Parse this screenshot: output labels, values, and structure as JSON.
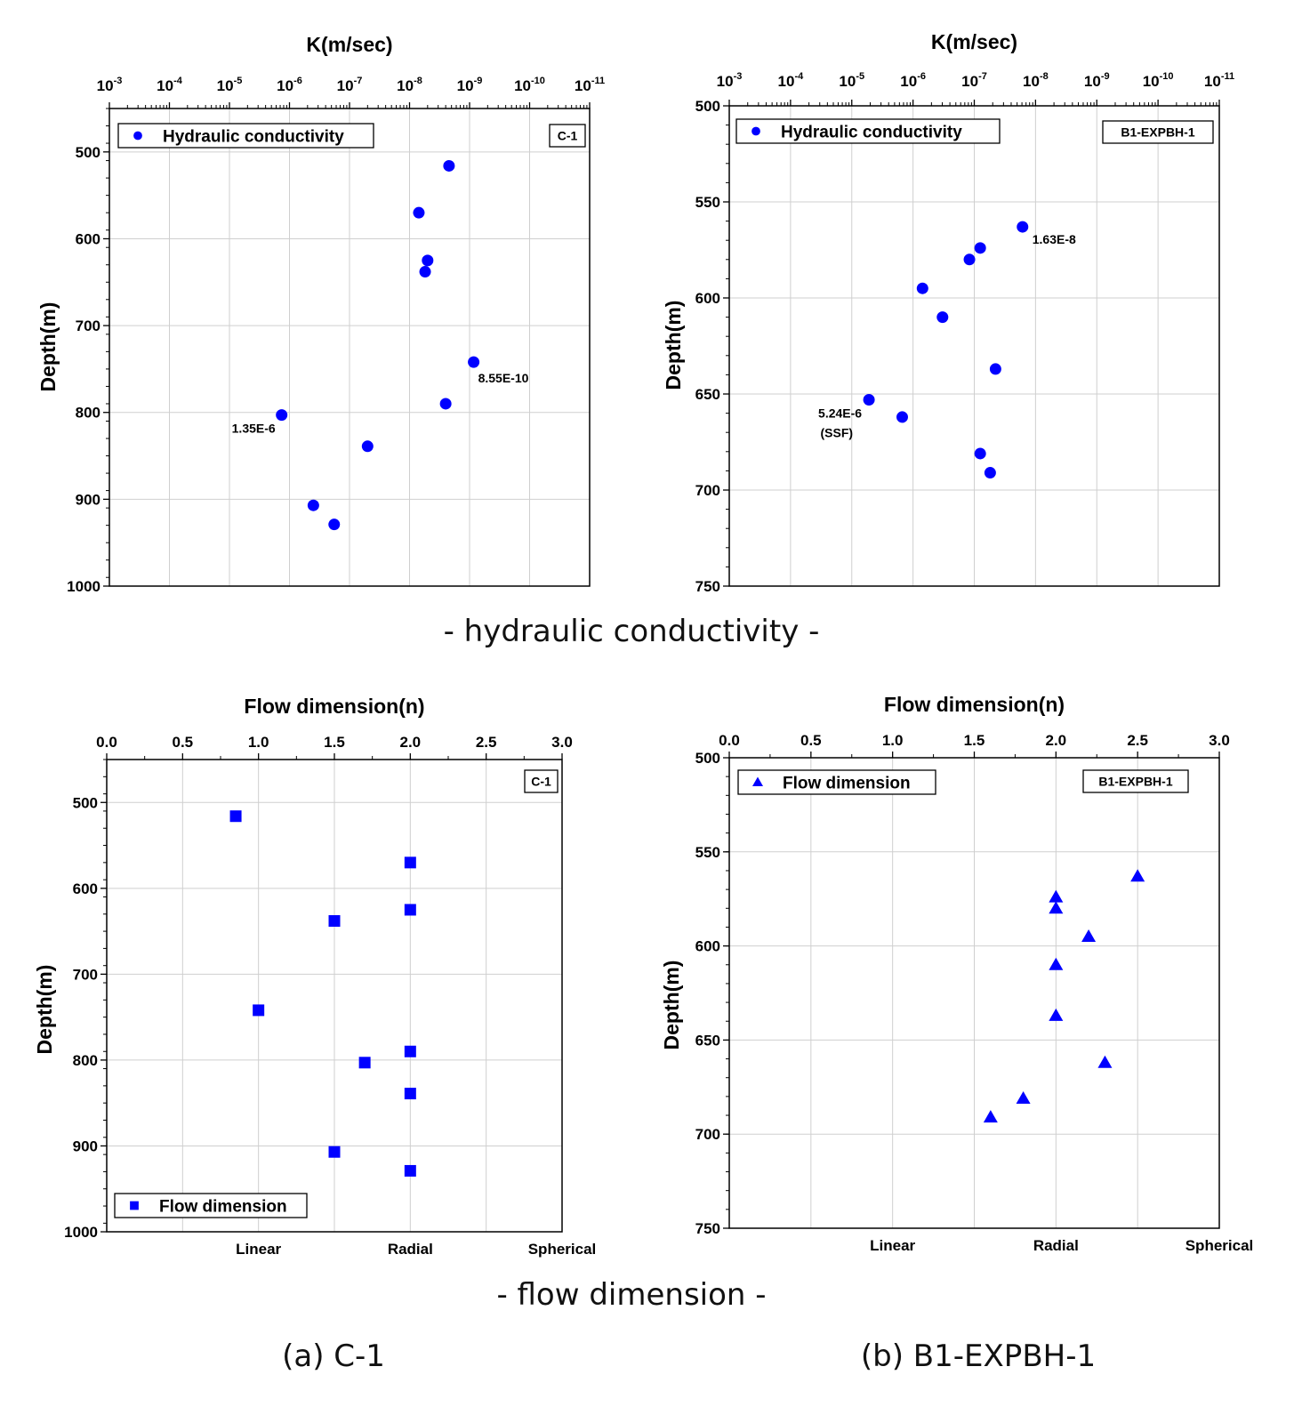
{
  "captions": {
    "hydraulic": "- hydraulic conductivity -",
    "flow": "- flow dimension -",
    "a": "(a) C-1",
    "b": "(b) B1-EXPBH-1"
  },
  "chart_data": [
    {
      "type": "scatter",
      "title": "K(m/sec)",
      "xlabel": "K(m/sec)",
      "ylabel": "Depth(m)",
      "x_scale": "log",
      "x_reversed": true,
      "xlim": [
        0.001,
        1e-11
      ],
      "x_ticks": [
        0.001,
        0.0001,
        1e-05,
        1e-06,
        1e-07,
        1e-08,
        1e-09,
        1e-10,
        1e-11
      ],
      "x_tick_labels": [
        {
          "base": "10",
          "exp": "-3"
        },
        {
          "base": "10",
          "exp": "-4"
        },
        {
          "base": "10",
          "exp": "-5"
        },
        {
          "base": "10",
          "exp": "-6"
        },
        {
          "base": "10",
          "exp": "-7"
        },
        {
          "base": "10",
          "exp": "-8"
        },
        {
          "base": "10",
          "exp": "-9"
        },
        {
          "base": "10",
          "exp": "-10"
        },
        {
          "base": "10",
          "exp": "-11"
        }
      ],
      "ylim": [
        1000,
        450
      ],
      "y_ticks": [
        500,
        600,
        700,
        800,
        900,
        1000
      ],
      "y_reversed": true,
      "grid": true,
      "legend": {
        "label": "Hydraulic conductivity",
        "position": "top-left",
        "marker": "circle"
      },
      "tag": "C-1",
      "color": "#0000ff",
      "series": [
        {
          "name": "Hydraulic conductivity",
          "marker": "circle",
          "points": [
            {
              "x": 2.2e-09,
              "y": 516
            },
            {
              "x": 7e-09,
              "y": 570
            },
            {
              "x": 5e-09,
              "y": 625
            },
            {
              "x": 5.5e-09,
              "y": 638
            },
            {
              "x": 8.55e-10,
              "y": 742
            },
            {
              "x": 2.5e-09,
              "y": 790
            },
            {
              "x": 1.35e-06,
              "y": 803
            },
            {
              "x": 5e-08,
              "y": 839
            },
            {
              "x": 4e-07,
              "y": 907
            },
            {
              "x": 1.8e-07,
              "y": 929
            }
          ]
        }
      ],
      "annotations": [
        {
          "text": "8.55E-10",
          "x": 8.55e-10,
          "y": 742
        },
        {
          "text": "1.35E-6",
          "x": 1.35e-06,
          "y": 803
        }
      ]
    },
    {
      "type": "scatter",
      "title": "K(m/sec)",
      "xlabel": "K(m/sec)",
      "ylabel": "Depth(m)",
      "x_scale": "log",
      "x_reversed": true,
      "xlim": [
        0.001,
        1e-11
      ],
      "x_ticks": [
        0.001,
        0.0001,
        1e-05,
        1e-06,
        1e-07,
        1e-08,
        1e-09,
        1e-10,
        1e-11
      ],
      "x_tick_labels": [
        {
          "base": "10",
          "exp": "-3"
        },
        {
          "base": "10",
          "exp": "-4"
        },
        {
          "base": "10",
          "exp": "-5"
        },
        {
          "base": "10",
          "exp": "-6"
        },
        {
          "base": "10",
          "exp": "-7"
        },
        {
          "base": "10",
          "exp": "-8"
        },
        {
          "base": "10",
          "exp": "-9"
        },
        {
          "base": "10",
          "exp": "-10"
        },
        {
          "base": "10",
          "exp": "-11"
        }
      ],
      "ylim": [
        750,
        500
      ],
      "y_ticks": [
        500,
        550,
        600,
        650,
        700,
        750
      ],
      "y_reversed": true,
      "grid": true,
      "legend": {
        "label": "Hydraulic conductivity",
        "position": "top-left",
        "marker": "circle"
      },
      "tag": "B1-EXPBH-1",
      "color": "#0000ff",
      "series": [
        {
          "name": "Hydraulic conductivity",
          "marker": "circle",
          "points": [
            {
              "x": 1.63e-08,
              "y": 563
            },
            {
              "x": 8e-08,
              "y": 574
            },
            {
              "x": 1.2e-07,
              "y": 580
            },
            {
              "x": 7e-07,
              "y": 595
            },
            {
              "x": 3.3e-07,
              "y": 610
            },
            {
              "x": 4.5e-08,
              "y": 637
            },
            {
              "x": 5.24e-06,
              "y": 653
            },
            {
              "x": 1.5e-06,
              "y": 662
            },
            {
              "x": 8e-08,
              "y": 681
            },
            {
              "x": 5.5e-08,
              "y": 691
            }
          ]
        }
      ],
      "annotations": [
        {
          "text": "1.63E-8",
          "x": 1.63e-08,
          "y": 563
        },
        {
          "text": "5.24E-6",
          "x": 5.24e-06,
          "y": 653
        },
        {
          "text": "(SSF)",
          "x": 5.24e-06,
          "y": 653
        }
      ]
    },
    {
      "type": "scatter",
      "title": "Flow dimension(n)",
      "xlabel": "Flow dimension(n)",
      "ylabel": "Depth(m)",
      "xlim": [
        0.0,
        3.0
      ],
      "x_ticks": [
        0.0,
        0.5,
        1.0,
        1.5,
        2.0,
        2.5,
        3.0
      ],
      "x_tick_labels": [
        "0.0",
        "0.5",
        "1.0",
        "1.5",
        "2.0",
        "2.5",
        "3.0"
      ],
      "ylim": [
        1000,
        450
      ],
      "y_ticks": [
        500,
        600,
        700,
        800,
        900,
        1000
      ],
      "y_reversed": true,
      "grid": true,
      "bottom_labels": [
        {
          "text": "Linear",
          "x": 1.0
        },
        {
          "text": "Radial",
          "x": 2.0
        },
        {
          "text": "Spherical",
          "x": 3.0
        }
      ],
      "legend": {
        "label": "Flow dimension",
        "position": "bottom-left",
        "marker": "square"
      },
      "tag": "C-1",
      "color": "#0000ff",
      "series": [
        {
          "name": "Flow dimension",
          "marker": "square",
          "points": [
            {
              "x": 0.85,
              "y": 516
            },
            {
              "x": 2.0,
              "y": 570
            },
            {
              "x": 2.0,
              "y": 625
            },
            {
              "x": 1.5,
              "y": 638
            },
            {
              "x": 1.0,
              "y": 742
            },
            {
              "x": 2.0,
              "y": 790
            },
            {
              "x": 1.7,
              "y": 803
            },
            {
              "x": 2.0,
              "y": 839
            },
            {
              "x": 1.5,
              "y": 907
            },
            {
              "x": 2.0,
              "y": 929
            }
          ]
        }
      ]
    },
    {
      "type": "scatter",
      "title": "Flow dimension(n)",
      "xlabel": "Flow dimension(n)",
      "ylabel": "Depth(m)",
      "xlim": [
        0.0,
        3.0
      ],
      "x_ticks": [
        0.0,
        0.5,
        1.0,
        1.5,
        2.0,
        2.5,
        3.0
      ],
      "x_tick_labels": [
        "0.0",
        "0.5",
        "1.0",
        "1.5",
        "2.0",
        "2.5",
        "3.0"
      ],
      "ylim": [
        750,
        500
      ],
      "y_ticks": [
        500,
        550,
        600,
        650,
        700,
        750
      ],
      "y_reversed": true,
      "grid": true,
      "bottom_labels": [
        {
          "text": "Linear",
          "x": 1.0
        },
        {
          "text": "Radial",
          "x": 2.0
        },
        {
          "text": "Spherical",
          "x": 3.0
        }
      ],
      "legend": {
        "label": "Flow dimension",
        "position": "top-left",
        "marker": "triangle"
      },
      "tag": "B1-EXPBH-1",
      "color": "#0000ff",
      "series": [
        {
          "name": "Flow dimension",
          "marker": "triangle",
          "points": [
            {
              "x": 2.5,
              "y": 563
            },
            {
              "x": 2.0,
              "y": 574
            },
            {
              "x": 2.0,
              "y": 580
            },
            {
              "x": 2.2,
              "y": 595
            },
            {
              "x": 2.0,
              "y": 610
            },
            {
              "x": 2.0,
              "y": 637
            },
            {
              "x": 2.3,
              "y": 662
            },
            {
              "x": 1.8,
              "y": 681
            },
            {
              "x": 1.6,
              "y": 691
            }
          ]
        }
      ]
    }
  ]
}
